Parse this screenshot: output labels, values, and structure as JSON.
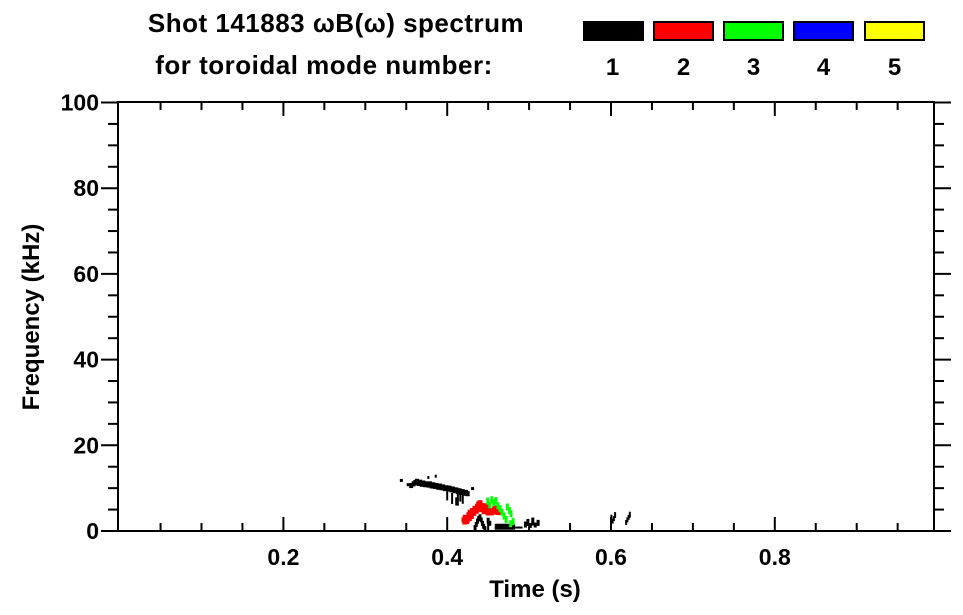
{
  "header": {
    "title_line1": "Shot 141883 ωB(ω) spectrum",
    "title_line2": "for toroidal mode number:"
  },
  "legend": {
    "items": [
      {
        "label": "1",
        "color": "#000000"
      },
      {
        "label": "2",
        "color": "#ff0000"
      },
      {
        "label": "3",
        "color": "#00ff00"
      },
      {
        "label": "4",
        "color": "#0000ff"
      },
      {
        "label": "5",
        "color": "#ffff00"
      }
    ]
  },
  "chart_data": {
    "type": "scatter",
    "title": "Shot 141883 ωB(ω) spectrum for toroidal mode number: 1 2 3 4 5",
    "xlabel": "Time (s)",
    "ylabel": "Frequency (kHz)",
    "xlim": [
      0,
      1.0
    ],
    "ylim": [
      0,
      100
    ],
    "grid": false,
    "legend_position": "top-right",
    "x_major_ticks": [
      0.2,
      0.4,
      0.6,
      0.8
    ],
    "x_tick_labels": [
      "0.2",
      "0.4",
      "0.6",
      "0.8"
    ],
    "x_minor_tick_step": 0.05,
    "y_major_ticks": [
      0,
      20,
      40,
      60,
      80,
      100
    ],
    "y_tick_labels": [
      "0",
      "20",
      "40",
      "60",
      "80",
      "100"
    ],
    "y_minor_tick_step": 5,
    "series": [
      {
        "name": "1",
        "color": "#000000",
        "mark": [
          4,
          5
        ],
        "points": [
          [
            0.344,
            11.8,
            3,
            3
          ],
          [
            0.353,
            10.8,
            4,
            3
          ],
          [
            0.356,
            10.6
          ],
          [
            0.359,
            11.0
          ],
          [
            0.361,
            11.3
          ],
          [
            0.363,
            11.6
          ],
          [
            0.365,
            11.1
          ],
          [
            0.367,
            11.4
          ],
          [
            0.369,
            10.9
          ],
          [
            0.371,
            11.2
          ],
          [
            0.373,
            10.8
          ],
          [
            0.375,
            11.0
          ],
          [
            0.377,
            10.7
          ],
          [
            0.377,
            12.5,
            2,
            3
          ],
          [
            0.379,
            11.0
          ],
          [
            0.381,
            10.5
          ],
          [
            0.383,
            10.8
          ],
          [
            0.385,
            10.4
          ],
          [
            0.386,
            12.8,
            2,
            3
          ],
          [
            0.387,
            10.6
          ],
          [
            0.389,
            10.2
          ],
          [
            0.391,
            10.5
          ],
          [
            0.393,
            10.1
          ],
          [
            0.395,
            10.3
          ],
          [
            0.397,
            9.9
          ],
          [
            0.399,
            10.1
          ],
          [
            0.401,
            9.8
          ],
          [
            0.403,
            10.0
          ],
          [
            0.405,
            9.6
          ],
          [
            0.407,
            9.8
          ],
          [
            0.409,
            9.4
          ],
          [
            0.411,
            9.6
          ],
          [
            0.413,
            9.2
          ],
          [
            0.415,
            9.4
          ],
          [
            0.417,
            9.0
          ],
          [
            0.419,
            9.2
          ],
          [
            0.421,
            8.8
          ],
          [
            0.423,
            9.0
          ],
          [
            0.425,
            8.7
          ],
          [
            0.431,
            9.9,
            3,
            3
          ],
          [
            0.4,
            8.2,
            2,
            9
          ],
          [
            0.406,
            7.6,
            2,
            11
          ],
          [
            0.411,
            6.9,
            2,
            8
          ],
          [
            0.413,
            7.3,
            2,
            12
          ],
          [
            0.416,
            7.8,
            2,
            8
          ],
          [
            0.419,
            7.4,
            2,
            9
          ],
          [
            0.434,
            0.8,
            3,
            5
          ],
          [
            0.4355,
            1.5,
            3,
            5
          ],
          [
            0.437,
            2.3,
            3,
            5
          ],
          [
            0.4385,
            2.9,
            3,
            5
          ],
          [
            0.44,
            3.3,
            3,
            5
          ],
          [
            0.4415,
            2.6,
            3,
            5
          ],
          [
            0.443,
            1.8,
            3,
            5
          ],
          [
            0.4445,
            1.1,
            3,
            5
          ],
          [
            0.446,
            0.6,
            3,
            5
          ],
          [
            0.45,
            2.4,
            3,
            6
          ],
          [
            0.452,
            1.8,
            3,
            5
          ],
          [
            0.4955,
            1.5,
            3,
            6
          ],
          [
            0.4985,
            2.0,
            3,
            7
          ],
          [
            0.5015,
            1.3,
            3,
            5
          ],
          [
            0.5045,
            2.2,
            3,
            8
          ],
          [
            0.5075,
            1.4,
            3,
            5
          ],
          [
            0.511,
            1.9,
            3,
            6
          ],
          [
            0.6005,
            3.1,
            2,
            6
          ],
          [
            0.602,
            2.3,
            2,
            5
          ],
          [
            0.6035,
            2.9,
            2,
            5
          ],
          [
            0.605,
            3.7,
            2,
            6
          ],
          [
            0.6185,
            2.0,
            2,
            5
          ],
          [
            0.62,
            2.6,
            2,
            5
          ],
          [
            0.6215,
            3.2,
            2,
            5
          ],
          [
            0.623,
            3.8,
            2,
            6
          ]
        ]
      },
      {
        "name": "2",
        "color": "#ff0000",
        "mark": [
          5,
          5
        ],
        "points": [
          [
            0.4205,
            2.6
          ],
          [
            0.422,
            3.2
          ],
          [
            0.4215,
            2.1
          ],
          [
            0.4235,
            2.2
          ],
          [
            0.4245,
            2.5
          ],
          [
            0.425,
            3.0
          ],
          [
            0.427,
            2.9
          ],
          [
            0.4265,
            3.8
          ],
          [
            0.428,
            4.4
          ],
          [
            0.4295,
            3.4
          ],
          [
            0.4295,
            4.0
          ],
          [
            0.431,
            4.8
          ],
          [
            0.4325,
            4.1
          ],
          [
            0.433,
            4.7
          ],
          [
            0.434,
            5.3
          ],
          [
            0.4355,
            4.6
          ],
          [
            0.436,
            5.1
          ],
          [
            0.437,
            5.8
          ],
          [
            0.4385,
            6.3
          ],
          [
            0.439,
            5.6
          ],
          [
            0.44,
            6.6
          ],
          [
            0.4415,
            6.0
          ],
          [
            0.442,
            5.0
          ],
          [
            0.443,
            5.5
          ],
          [
            0.4445,
            5.9
          ],
          [
            0.445,
            4.5
          ],
          [
            0.446,
            5.2
          ],
          [
            0.4475,
            5.6
          ],
          [
            0.4475,
            4.6
          ],
          [
            0.449,
            4.9
          ],
          [
            0.45,
            4.2
          ],
          [
            0.4505,
            5.3
          ],
          [
            0.452,
            4.6
          ],
          [
            0.4535,
            4.2
          ],
          [
            0.455,
            4.8
          ],
          [
            0.4565,
            4.4
          ],
          [
            0.458,
            5.2
          ],
          [
            0.4595,
            4.7
          ],
          [
            0.461,
            5.4
          ],
          [
            0.4625,
            4.3
          ]
        ]
      },
      {
        "name": "3",
        "color": "#00ff00",
        "mark": [
          3,
          7
        ],
        "points": [
          [
            0.4495,
            7.0
          ],
          [
            0.452,
            6.1
          ],
          [
            0.4545,
            7.3
          ],
          [
            0.457,
            6.6
          ],
          [
            0.4595,
            7.1
          ],
          [
            0.462,
            5.9
          ],
          [
            0.4645,
            5.2
          ],
          [
            0.467,
            4.4
          ],
          [
            0.4695,
            3.5
          ],
          [
            0.472,
            2.7
          ],
          [
            0.4735,
            5.6
          ],
          [
            0.476,
            4.8
          ],
          [
            0.478,
            4.0
          ],
          [
            0.4775,
            1.7
          ],
          [
            0.4805,
            2.2
          ]
        ]
      },
      {
        "name": "4",
        "color": "#0000ff",
        "mark": [
          4,
          4
        ],
        "points": []
      },
      {
        "name": "5",
        "color": "#ffff00",
        "mark": [
          4,
          4
        ],
        "points": []
      }
    ],
    "segments": [
      {
        "series": "1",
        "color": "#000000",
        "t1": 0.458,
        "t2": 0.483,
        "f": 1.0,
        "h": 6
      },
      {
        "series": "1",
        "color": "#000000",
        "t1": 0.483,
        "t2": 0.492,
        "f": 0.8,
        "h": 2
      }
    ]
  }
}
